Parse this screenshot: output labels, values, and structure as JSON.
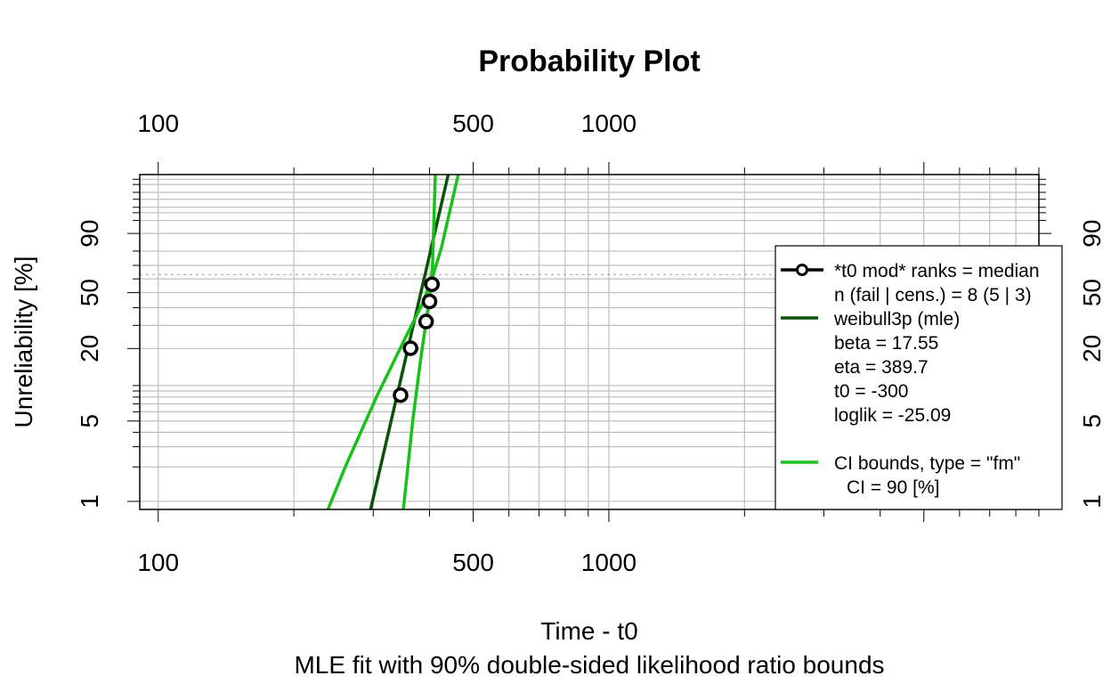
{
  "chart_data": {
    "type": "scatter",
    "title": "Probability Plot",
    "xlabel": "Time - t0",
    "subtitle": "MLE fit with 90% double-sided likelihood ratio bounds",
    "ylabel": "Unreliability [%]",
    "x_scale": "log",
    "y_scale": "weibull",
    "xlim": [
      91,
      9000
    ],
    "ylim_percent": [
      0.85,
      99.95
    ],
    "x_tick_labels": [
      "100",
      "500",
      "1000"
    ],
    "y_tick_labels": [
      "1",
      "5",
      "20",
      "50",
      "90"
    ],
    "grid": true,
    "legend_position": "right",
    "series": [
      {
        "name": "*t0 mod* ranks = median",
        "kind": "points",
        "color": "#000000",
        "points": [
          [
            345,
            8.3
          ],
          [
            363,
            20.1
          ],
          [
            393,
            32.0
          ],
          [
            400,
            44.0
          ],
          [
            405,
            56.0
          ]
        ]
      },
      {
        "name": "weibull3p (mle)",
        "kind": "line",
        "color": "#0a520a",
        "points": [
          [
            296,
            0.85
          ],
          [
            440,
            99.95
          ]
        ]
      },
      {
        "name": "CI bounds, type = \"fm\"",
        "kind": "line",
        "color": "#19c019",
        "points": [
          [
            238,
            0.85
          ],
          [
            260,
            2.0
          ],
          [
            305,
            8.0
          ],
          [
            355,
            25.0
          ],
          [
            385,
            42.0
          ],
          [
            405,
            60.0
          ],
          [
            425,
            82.0
          ],
          [
            463,
            99.95
          ]
        ]
      },
      {
        "name": "CI bounds, type = \"fm\"",
        "kind": "line",
        "color": "#19c019",
        "points": [
          [
            350,
            0.85
          ],
          [
            367,
            5.0
          ],
          [
            381,
            15.0
          ],
          [
            393,
            32.0
          ],
          [
            401,
            50.0
          ],
          [
            406,
            68.0
          ],
          [
            412,
            99.95
          ]
        ]
      }
    ],
    "reference_line_percent": 63.2,
    "legend": {
      "entries": [
        "*t0 mod* ranks = median",
        "n (fail | cens.) = 8 (5 | 3)",
        "weibull3p (mle)",
        "beta = 17.55",
        "eta = 389.7",
        "t0 = -300",
        "loglik = -25.09",
        "CI bounds, type = \"fm\"",
        "CI = 90 [%]"
      ]
    }
  }
}
